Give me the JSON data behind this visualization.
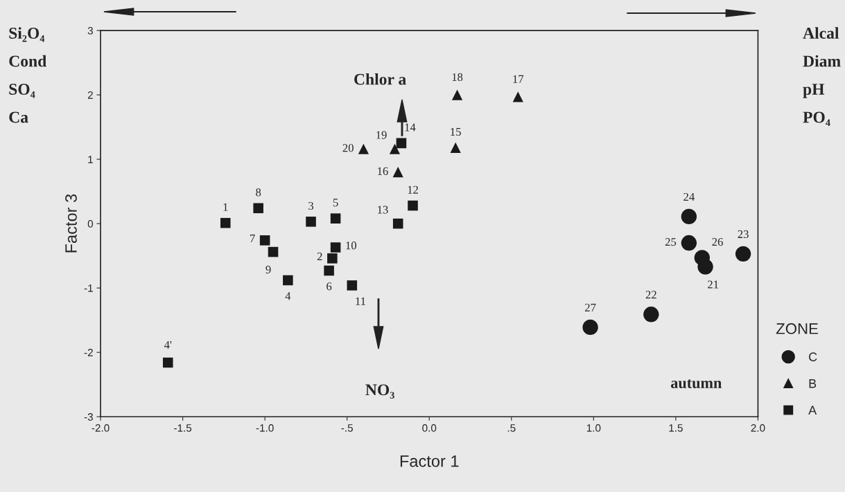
{
  "chart_data": {
    "type": "scatter",
    "xlabel": "Factor 1",
    "ylabel": "Factor 3",
    "legend_title": "ZONE",
    "legend": "right",
    "grid": false,
    "xlim": [
      -2,
      2
    ],
    "ylim": [
      -3,
      3
    ],
    "xticks": [
      {
        "value": -2,
        "label": "-2.0"
      },
      {
        "value": -1.5,
        "label": "-1.5"
      },
      {
        "value": -1,
        "label": "-1.0"
      },
      {
        "value": -0.5,
        "label": "-.5"
      },
      {
        "value": 0,
        "label": "0.0"
      },
      {
        "value": 0.5,
        "label": ".5"
      },
      {
        "value": 1,
        "label": "1.0"
      },
      {
        "value": 1.5,
        "label": "1.5"
      },
      {
        "value": 2,
        "label": "2.0"
      }
    ],
    "yticks": [
      -3,
      -2,
      -1,
      0,
      1,
      2,
      3
    ],
    "series": [
      {
        "name": "C",
        "color": "#1a1a1a",
        "marker": "circle",
        "x": [
          1.68,
          1.35,
          1.91,
          1.58,
          1.58,
          1.66,
          0.98
        ],
        "values": [
          -0.67,
          -1.41,
          -0.47,
          0.11,
          -0.3,
          -0.53,
          -1.61
        ]
      },
      {
        "name": "B",
        "color": "#1a1a1a",
        "marker": "triangle",
        "x": [
          0.16,
          -0.19,
          0.54,
          0.17,
          -0.21,
          -0.4
        ],
        "values": [
          1.18,
          0.8,
          1.97,
          2.0,
          1.16,
          1.16
        ]
      },
      {
        "name": "A",
        "color": "#1a1a1a",
        "marker": "square",
        "x": [
          -1.24,
          -0.59,
          -0.72,
          -0.86,
          -0.57,
          -0.61,
          -1.0,
          -1.04,
          -0.95,
          -0.57,
          -0.47,
          -0.1,
          -0.19,
          -0.17,
          -1.59
        ],
        "values": [
          0.01,
          -0.54,
          0.03,
          -0.88,
          0.08,
          -0.73,
          -0.26,
          0.24,
          -0.44,
          -0.37,
          -0.96,
          0.28,
          0.0,
          1.25,
          -2.16
        ]
      }
    ],
    "annotations": [
      {
        "text": "1",
        "x": -1.24,
        "y": 0.01
      },
      {
        "text": "2",
        "x": -0.59,
        "y": -0.54
      },
      {
        "text": "3",
        "x": -0.72,
        "y": 0.03
      },
      {
        "text": "4",
        "x": -0.86,
        "y": -0.88
      },
      {
        "text": "5",
        "x": -0.57,
        "y": 0.08
      },
      {
        "text": "6",
        "x": -0.61,
        "y": -0.73
      },
      {
        "text": "7",
        "x": -1.0,
        "y": -0.26
      },
      {
        "text": "8",
        "x": -1.04,
        "y": 0.24
      },
      {
        "text": "9",
        "x": -0.95,
        "y": -0.44
      },
      {
        "text": "10",
        "x": -0.57,
        "y": -0.37
      },
      {
        "text": "11",
        "x": -0.47,
        "y": -0.96
      },
      {
        "text": "12",
        "x": -0.1,
        "y": 0.28
      },
      {
        "text": "13",
        "x": -0.19,
        "y": 0.0
      },
      {
        "text": "14",
        "x": -0.17,
        "y": 1.25
      },
      {
        "text": "15",
        "x": 0.16,
        "y": 1.18
      },
      {
        "text": "16",
        "x": -0.19,
        "y": 0.8
      },
      {
        "text": "17",
        "x": 0.54,
        "y": 1.97
      },
      {
        "text": "18",
        "x": 0.17,
        "y": 2.0
      },
      {
        "text": "19",
        "x": -0.21,
        "y": 1.16
      },
      {
        "text": "20",
        "x": -0.4,
        "y": 1.16
      },
      {
        "text": "21",
        "x": 1.68,
        "y": -0.67
      },
      {
        "text": "22",
        "x": 1.35,
        "y": -1.41
      },
      {
        "text": "23",
        "x": 1.91,
        "y": -0.47
      },
      {
        "text": "24",
        "x": 1.58,
        "y": 0.11
      },
      {
        "text": "25",
        "x": 1.58,
        "y": -0.3
      },
      {
        "text": "26",
        "x": 1.66,
        "y": -0.53
      },
      {
        "text": "27",
        "x": 0.98,
        "y": -1.61
      },
      {
        "text": "4'",
        "x": -1.59,
        "y": -2.16
      },
      "Chlor a",
      "NO₃",
      "autumn",
      "Si₂O₄",
      "Cond",
      "SO₄",
      "Ca",
      "Alcal",
      "Diam",
      "pH",
      "PO₄"
    ]
  }
}
